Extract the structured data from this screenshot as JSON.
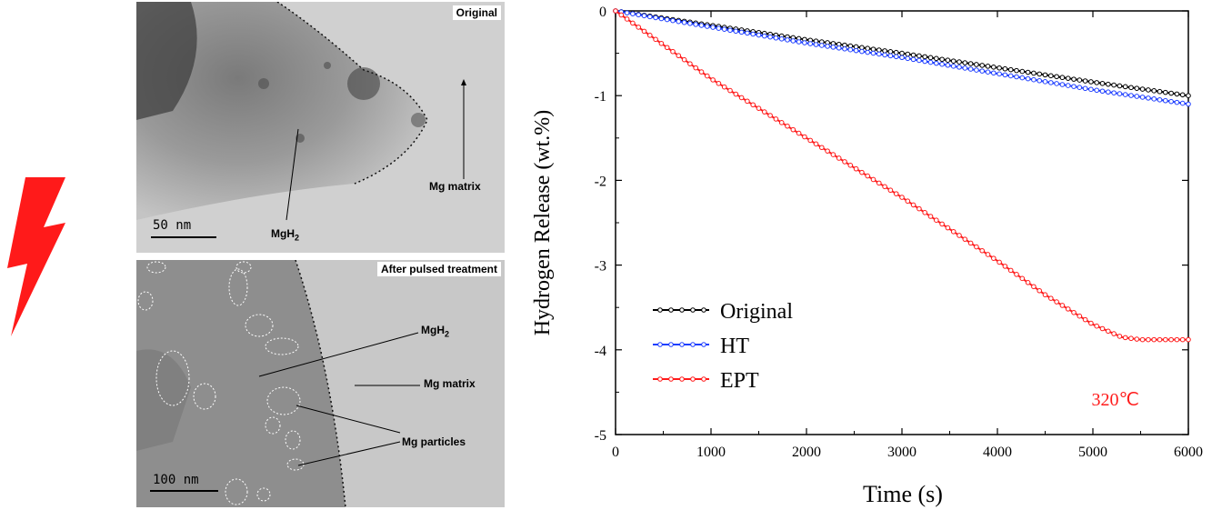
{
  "micrographs": {
    "top": {
      "title": "Original",
      "label_matrix": "Mg matrix",
      "label_hydride": "MgH",
      "label_hydride_sub": "2",
      "scale_bar": "50 nm"
    },
    "bottom": {
      "title": "After pulsed treatment",
      "label_hydride": "MgH",
      "label_hydride_sub": "2",
      "label_matrix": "Mg matrix",
      "label_particles": "Mg particles",
      "scale_bar": "100 nm"
    }
  },
  "colors": {
    "bolt": "#ff1a1a",
    "original": "#000000",
    "ht": "#1f3fff",
    "ept": "#ff1a1a",
    "annotation": "#ff1a1a"
  },
  "icons": {
    "bolt": "lightning-bolt-icon"
  },
  "chart_data": {
    "type": "line",
    "title": "",
    "xlabel": "Time (s)",
    "ylabel": "Hydrogen Release (wt.%)",
    "xlim": [
      0,
      6000
    ],
    "ylim": [
      -5,
      0
    ],
    "xticks": [
      0,
      1000,
      2000,
      3000,
      4000,
      5000,
      6000
    ],
    "yticks": [
      0,
      -1,
      -2,
      -3,
      -4,
      -5
    ],
    "legend_position": "bottom-left",
    "annotation": "320℃",
    "series": [
      {
        "name": "Original",
        "color": "#000000",
        "x": [
          0,
          1000,
          2000,
          3000,
          4000,
          5000,
          6000
        ],
        "y": [
          0,
          -0.17,
          -0.34,
          -0.5,
          -0.67,
          -0.84,
          -1.0
        ]
      },
      {
        "name": "HT",
        "color": "#1f3fff",
        "x": [
          0,
          1000,
          2000,
          3000,
          4000,
          5000,
          6000
        ],
        "y": [
          0,
          -0.19,
          -0.38,
          -0.55,
          -0.74,
          -0.93,
          -1.1
        ]
      },
      {
        "name": "EPT",
        "color": "#ff1a1a",
        "x": [
          0,
          100,
          1000,
          2000,
          3000,
          4000,
          4500,
          5000,
          5300,
          5500,
          5700,
          6000
        ],
        "y": [
          0,
          -0.08,
          -0.8,
          -1.5,
          -2.2,
          -2.95,
          -3.35,
          -3.7,
          -3.85,
          -3.88,
          -3.88,
          -3.88
        ]
      }
    ]
  }
}
